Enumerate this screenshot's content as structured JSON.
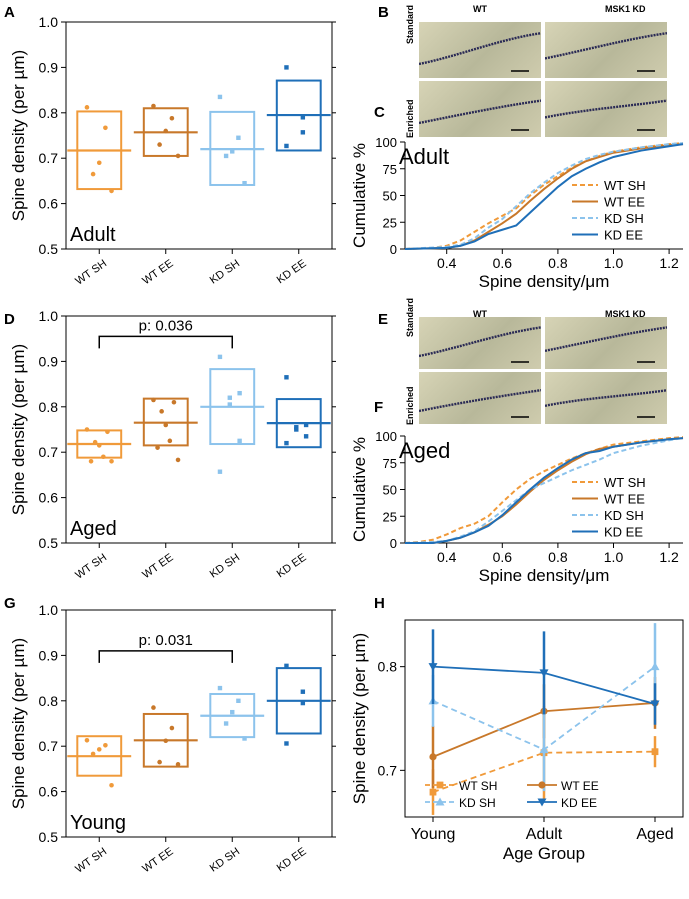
{
  "colors": {
    "wt_sh": "#f09a3a",
    "wt_ee": "#c8782a",
    "kd_sh": "#8cc3ec",
    "kd_ee": "#1f6fb8",
    "axis": "#000000",
    "micro_bg": "#c9c6a6",
    "dendrite": "#2a2a55"
  },
  "panels": {
    "A": "A",
    "B": "B",
    "C": "C",
    "D": "D",
    "E": "E",
    "F": "F",
    "G": "G",
    "H": "H"
  },
  "micro": {
    "wt": "WT",
    "kd": "MSK1 KD",
    "standard": "Standard",
    "enriched": "Enriched"
  },
  "chart_data": [
    {
      "id": "A",
      "type": "box-scatter",
      "ylabel": "Spine density (per µm)",
      "ylim": [
        0.5,
        1.0
      ],
      "yticks": [
        "0.5",
        "0.6",
        "0.7",
        "0.8",
        "0.9",
        "1.0"
      ],
      "categories": [
        "WT SH",
        "WT EE",
        "KD SH",
        "KD EE"
      ],
      "annotation": "Adult",
      "groups": [
        {
          "color": "wt_sh",
          "mean": 0.717,
          "box": [
            0.632,
            0.803
          ],
          "points": [
            0.812,
            0.767,
            0.69,
            0.665,
            0.628
          ],
          "marker": "circle"
        },
        {
          "color": "wt_ee",
          "mean": 0.757,
          "box": [
            0.705,
            0.81
          ],
          "points": [
            0.815,
            0.788,
            0.76,
            0.73,
            0.705
          ],
          "marker": "circle"
        },
        {
          "color": "kd_sh",
          "mean": 0.72,
          "box": [
            0.641,
            0.802
          ],
          "points": [
            0.835,
            0.745,
            0.715,
            0.705,
            0.645
          ],
          "marker": "square"
        },
        {
          "color": "kd_ee",
          "mean": 0.795,
          "box": [
            0.717,
            0.871
          ],
          "points": [
            0.9,
            0.79,
            0.757,
            0.727
          ],
          "marker": "square"
        }
      ]
    },
    {
      "id": "D",
      "type": "box-scatter",
      "ylabel": "Spine density (per µm)",
      "ylim": [
        0.5,
        1.0
      ],
      "yticks": [
        "0.5",
        "0.6",
        "0.7",
        "0.8",
        "0.9",
        "1.0"
      ],
      "categories": [
        "WT SH",
        "WT EE",
        "KD SH",
        "KD EE"
      ],
      "annotation": "Aged",
      "significance": {
        "from": 0,
        "to": 2,
        "label": "p: 0.036",
        "y": 0.955
      },
      "groups": [
        {
          "color": "wt_sh",
          "mean": 0.718,
          "box": [
            0.688,
            0.748
          ],
          "points": [
            0.75,
            0.745,
            0.722,
            0.715,
            0.69,
            0.68,
            0.68
          ],
          "marker": "circle"
        },
        {
          "color": "wt_ee",
          "mean": 0.765,
          "box": [
            0.715,
            0.818
          ],
          "points": [
            0.815,
            0.81,
            0.79,
            0.76,
            0.725,
            0.71,
            0.683
          ],
          "marker": "circle"
        },
        {
          "color": "kd_sh",
          "mean": 0.8,
          "box": [
            0.718,
            0.883
          ],
          "points": [
            0.91,
            0.83,
            0.82,
            0.805,
            0.725,
            0.657
          ],
          "marker": "square"
        },
        {
          "color": "kd_ee",
          "mean": 0.764,
          "box": [
            0.711,
            0.817
          ],
          "points": [
            0.865,
            0.76,
            0.755,
            0.75,
            0.735,
            0.72
          ],
          "marker": "square"
        }
      ]
    },
    {
      "id": "G",
      "type": "box-scatter",
      "ylabel": "Spine density (per µm)",
      "ylim": [
        0.5,
        1.0
      ],
      "yticks": [
        "0.5",
        "0.6",
        "0.7",
        "0.8",
        "0.9",
        "1.0"
      ],
      "categories": [
        "WT SH",
        "WT EE",
        "KD SH",
        "KD EE"
      ],
      "annotation": "Young",
      "significance": {
        "from": 0,
        "to": 2,
        "label": "p: 0.031",
        "y": 0.91
      },
      "groups": [
        {
          "color": "wt_sh",
          "mean": 0.678,
          "box": [
            0.635,
            0.722
          ],
          "points": [
            0.713,
            0.702,
            0.693,
            0.683,
            0.614
          ],
          "marker": "circle"
        },
        {
          "color": "wt_ee",
          "mean": 0.713,
          "box": [
            0.655,
            0.771
          ],
          "points": [
            0.785,
            0.74,
            0.712,
            0.665,
            0.66
          ],
          "marker": "circle"
        },
        {
          "color": "kd_sh",
          "mean": 0.767,
          "box": [
            0.72,
            0.815
          ],
          "points": [
            0.828,
            0.8,
            0.775,
            0.75,
            0.717
          ],
          "marker": "square"
        },
        {
          "color": "kd_ee",
          "mean": 0.8,
          "box": [
            0.728,
            0.872
          ],
          "points": [
            0.877,
            0.82,
            0.795,
            0.706
          ],
          "marker": "square"
        }
      ]
    },
    {
      "id": "C",
      "type": "line",
      "xlabel": "Spine density/μm",
      "ylabel": "Cumulative %",
      "xlim": [
        0.25,
        1.25
      ],
      "ylim": [
        0,
        100
      ],
      "xticks": [
        "0.4",
        "0.6",
        "0.8",
        "1.0",
        "1.2"
      ],
      "yticks": [
        "0",
        "25",
        "50",
        "75",
        "100"
      ],
      "annotation": "Adult",
      "series": [
        {
          "name": "WT SH",
          "color": "wt_sh",
          "dash": true,
          "x": [
            0.25,
            0.35,
            0.4,
            0.45,
            0.5,
            0.55,
            0.6,
            0.65,
            0.7,
            0.75,
            0.8,
            0.85,
            0.9,
            0.95,
            1.0,
            1.1,
            1.2,
            1.25
          ],
          "y": [
            0,
            1,
            3,
            8,
            16,
            24,
            31,
            38,
            50,
            60,
            68,
            76,
            82,
            87,
            91,
            95,
            98,
            99
          ]
        },
        {
          "name": "WT EE",
          "color": "wt_ee",
          "dash": false,
          "x": [
            0.25,
            0.4,
            0.45,
            0.5,
            0.55,
            0.6,
            0.65,
            0.7,
            0.75,
            0.8,
            0.85,
            0.9,
            0.95,
            1.0,
            1.1,
            1.2,
            1.25
          ],
          "y": [
            0,
            1,
            3,
            8,
            16,
            24,
            33,
            45,
            56,
            66,
            75,
            82,
            86,
            90,
            94,
            97,
            98
          ]
        },
        {
          "name": "KD SH",
          "color": "kd_sh",
          "dash": true,
          "x": [
            0.25,
            0.4,
            0.45,
            0.5,
            0.55,
            0.6,
            0.65,
            0.7,
            0.75,
            0.8,
            0.85,
            0.9,
            0.95,
            1.0,
            1.1,
            1.2,
            1.25
          ],
          "y": [
            0,
            2,
            4,
            10,
            20,
            28,
            40,
            52,
            62,
            71,
            78,
            84,
            88,
            91,
            95,
            98,
            99
          ]
        },
        {
          "name": "KD EE",
          "color": "kd_ee",
          "dash": false,
          "x": [
            0.25,
            0.4,
            0.45,
            0.5,
            0.55,
            0.6,
            0.65,
            0.7,
            0.75,
            0.8,
            0.85,
            0.9,
            0.95,
            1.0,
            1.1,
            1.2,
            1.25
          ],
          "y": [
            0,
            1,
            3,
            7,
            14,
            18,
            22,
            34,
            46,
            58,
            68,
            75,
            81,
            86,
            92,
            96,
            98
          ]
        }
      ]
    },
    {
      "id": "F",
      "type": "line",
      "xlabel": "Spine density/μm",
      "ylabel": "Cumulative %",
      "xlim": [
        0.25,
        1.25
      ],
      "ylim": [
        0,
        100
      ],
      "xticks": [
        "0.4",
        "0.6",
        "0.8",
        "1.0",
        "1.2"
      ],
      "yticks": [
        "0",
        "25",
        "50",
        "75",
        "100"
      ],
      "annotation": "Aged",
      "series": [
        {
          "name": "WT SH",
          "color": "wt_sh",
          "dash": true,
          "x": [
            0.25,
            0.3,
            0.35,
            0.4,
            0.45,
            0.5,
            0.55,
            0.6,
            0.65,
            0.7,
            0.75,
            0.8,
            0.85,
            0.9,
            0.95,
            1.0,
            1.1,
            1.2,
            1.25
          ],
          "y": [
            0,
            1,
            3,
            8,
            14,
            18,
            25,
            38,
            50,
            60,
            67,
            73,
            79,
            84,
            88,
            92,
            95,
            98,
            99
          ]
        },
        {
          "name": "WT EE",
          "color": "wt_ee",
          "dash": false,
          "x": [
            0.25,
            0.35,
            0.4,
            0.45,
            0.5,
            0.55,
            0.6,
            0.65,
            0.7,
            0.75,
            0.8,
            0.85,
            0.9,
            0.95,
            1.0,
            1.1,
            1.2,
            1.25
          ],
          "y": [
            0,
            0,
            2,
            5,
            10,
            17,
            25,
            36,
            48,
            59,
            68,
            76,
            83,
            88,
            90,
            94,
            97,
            98
          ]
        },
        {
          "name": "KD SH",
          "color": "kd_sh",
          "dash": true,
          "x": [
            0.25,
            0.35,
            0.4,
            0.45,
            0.5,
            0.55,
            0.6,
            0.65,
            0.7,
            0.75,
            0.8,
            0.85,
            0.9,
            0.95,
            1.0,
            1.1,
            1.2,
            1.25
          ],
          "y": [
            0,
            1,
            2,
            6,
            11,
            20,
            30,
            40,
            50,
            56,
            62,
            68,
            73,
            78,
            84,
            91,
            96,
            98
          ]
        },
        {
          "name": "KD EE",
          "color": "kd_ee",
          "dash": false,
          "x": [
            0.25,
            0.35,
            0.4,
            0.45,
            0.5,
            0.55,
            0.6,
            0.65,
            0.7,
            0.75,
            0.8,
            0.85,
            0.9,
            0.95,
            1.0,
            1.1,
            1.2,
            1.25
          ],
          "y": [
            0,
            0,
            2,
            5,
            10,
            16,
            26,
            38,
            50,
            61,
            70,
            78,
            84,
            86,
            90,
            94,
            97,
            98
          ]
        }
      ]
    },
    {
      "id": "H",
      "type": "line",
      "xlabel": "Age Group",
      "ylabel": "Spine density (per µm)",
      "categories": [
        "Young",
        "Adult",
        "Aged"
      ],
      "ylim": [
        0.655,
        0.845
      ],
      "yticks": [
        "0.7",
        "0.8"
      ],
      "ytick_values": [
        0.7,
        0.8
      ],
      "series": [
        {
          "name": "WT SH",
          "color": "wt_sh",
          "dash": true,
          "marker": "square",
          "values": [
            0.679,
            0.717,
            0.718
          ],
          "err": [
            0.022,
            0.045,
            0.015
          ]
        },
        {
          "name": "WT EE",
          "color": "wt_ee",
          "dash": false,
          "marker": "circle",
          "values": [
            0.713,
            0.757,
            0.765
          ],
          "err": [
            0.03,
            0.026,
            0.025
          ]
        },
        {
          "name": "KD SH",
          "color": "kd_sh",
          "dash": true,
          "marker": "triangle-up",
          "values": [
            0.767,
            0.72,
            0.8
          ],
          "err": [
            0.025,
            0.04,
            0.042
          ]
        },
        {
          "name": "KD EE",
          "color": "kd_ee",
          "dash": false,
          "marker": "triangle-down",
          "values": [
            0.8,
            0.794,
            0.764
          ],
          "err": [
            0.036,
            0.04,
            0.02
          ]
        }
      ]
    }
  ]
}
